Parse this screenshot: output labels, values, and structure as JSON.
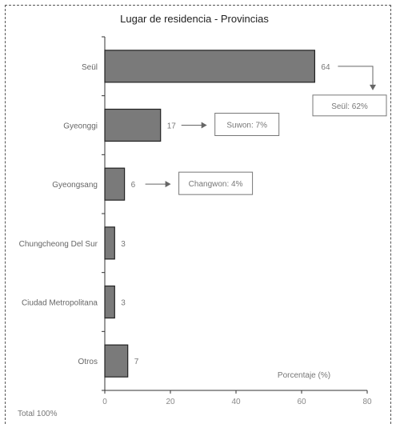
{
  "chart_data": {
    "type": "bar",
    "orientation": "horizontal",
    "title": "Lugar de residencia - Provincias",
    "categories": [
      "Seül",
      "Gyeonggi",
      "Gyeongsang",
      "Chungcheong Del Sur",
      "Ciudad Metropolitana",
      "Otros"
    ],
    "values": [
      64,
      17,
      6,
      3,
      3,
      7
    ],
    "xlabel": "Porcentaje (%)",
    "ylabel": "",
    "xlim": [
      0,
      80
    ],
    "xticks": [
      0,
      20,
      40,
      60,
      80
    ],
    "grid": false,
    "bar_color": "#7a7a7a",
    "annotations": [
      {
        "category": "Seül",
        "text": "Seül: 62%"
      },
      {
        "category": "Gyeonggi",
        "text": "Suwon: 7%"
      },
      {
        "category": "Gyeongsang",
        "text": "Changwon: 4%"
      }
    ],
    "footnote": "Total 100%"
  }
}
